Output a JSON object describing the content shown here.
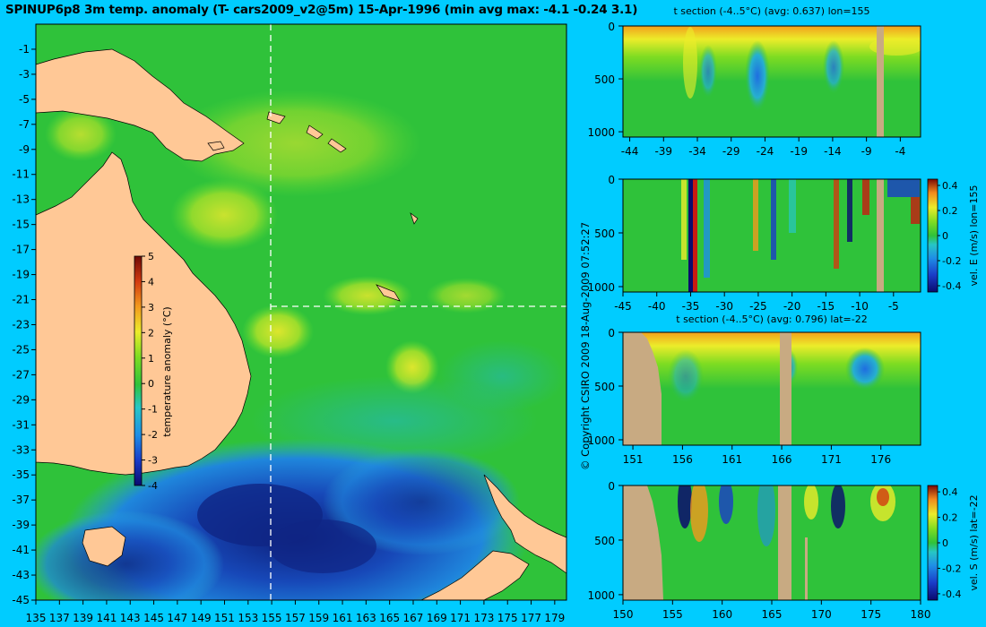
{
  "title": "SPINUP6p8 3m temp. anomaly (T- cars2009_v2@5m) 15-Apr-1996 (min avg max: -4.1 -0.24 3.1)",
  "copyright": "© Copyright CSIRO 2009   18-Aug-2009 07:52:27",
  "colors": {
    "page_bg": "#00ccff",
    "ocean_green": "#2fc23a",
    "ocean_light_green": "#66dd33",
    "warm_yellow": "#e6e62e",
    "cold_blue": "#1b6bd6",
    "deep_blue": "#12258a",
    "land": "#ffc896",
    "section_land": "#c8aa82",
    "crosshair": "#ffffff"
  },
  "chart_data": [
    {
      "type": "heatmap",
      "name": "map",
      "x_ticks": [
        "135",
        "137",
        "139",
        "141",
        "143",
        "145",
        "147",
        "149",
        "151",
        "153",
        "155",
        "157",
        "159",
        "161",
        "163",
        "165",
        "167",
        "169",
        "171",
        "173",
        "175",
        "177",
        "179"
      ],
      "y_ticks": [
        "-1",
        "-3",
        "-5",
        "-7",
        "-9",
        "-11",
        "-13",
        "-15",
        "-17",
        "-19",
        "-21",
        "-23",
        "-25",
        "-27",
        "-29",
        "-31",
        "-33",
        "-35",
        "-37",
        "-39",
        "-41",
        "-43",
        "-45"
      ],
      "xlim": [
        135,
        180
      ],
      "ylim": [
        -45,
        1
      ],
      "crosshair": {
        "lon": 155,
        "lat": -22
      },
      "colorbar": {
        "label": "temperature anomaly (°C)",
        "ticks": [
          "5",
          "4",
          "3",
          "2",
          "1",
          "0",
          "-1",
          "-2",
          "-3",
          "-4"
        ],
        "range": [
          -4,
          5
        ]
      }
    },
    {
      "type": "heatmap",
      "name": "t-section-lon155",
      "title": "t section (-4..5°C) (avg: 0.637) lon=155",
      "x_ticks": [
        "-44",
        "-39",
        "-34",
        "-29",
        "-24",
        "-19",
        "-14",
        "-9",
        "-4"
      ],
      "y_ticks": [
        "0",
        "500",
        "1000"
      ],
      "xlim": [
        -45,
        -1
      ],
      "ylim": [
        1050,
        0
      ]
    },
    {
      "type": "heatmap",
      "name": "vel-e-section-lon155",
      "colorbar_label": "vel. E (m/s) lon=155",
      "colorbar_ticks": [
        "0.4",
        "0.2",
        "0",
        "-0.2",
        "-0.4"
      ],
      "x_ticks": [
        "-45",
        "-40",
        "-35",
        "-30",
        "-25",
        "-20",
        "-15",
        "-10",
        "-5"
      ],
      "y_ticks": [
        "0",
        "500",
        "1000"
      ],
      "xlim": [
        -45,
        -1
      ],
      "ylim": [
        1050,
        0
      ]
    },
    {
      "type": "heatmap",
      "name": "t-section-lat-22",
      "title": "t section (-4..5°C) (avg: 0.796) lat=-22",
      "x_ticks": [
        "151",
        "156",
        "161",
        "166",
        "171",
        "176"
      ],
      "y_ticks": [
        "0",
        "500",
        "1000"
      ],
      "xlim": [
        150,
        180
      ],
      "ylim": [
        1050,
        0
      ]
    },
    {
      "type": "heatmap",
      "name": "vel-s-section-lat-22",
      "colorbar_label": "vel. S (m/s) lat=-22",
      "colorbar_ticks": [
        "0.4",
        "0.2",
        "0",
        "-0.2",
        "-0.4"
      ],
      "x_ticks": [
        "150",
        "155",
        "160",
        "165",
        "170",
        "175",
        "180"
      ],
      "y_ticks": [
        "0",
        "500",
        "1000"
      ],
      "xlim": [
        150,
        180
      ],
      "ylim": [
        1050,
        0
      ]
    }
  ]
}
